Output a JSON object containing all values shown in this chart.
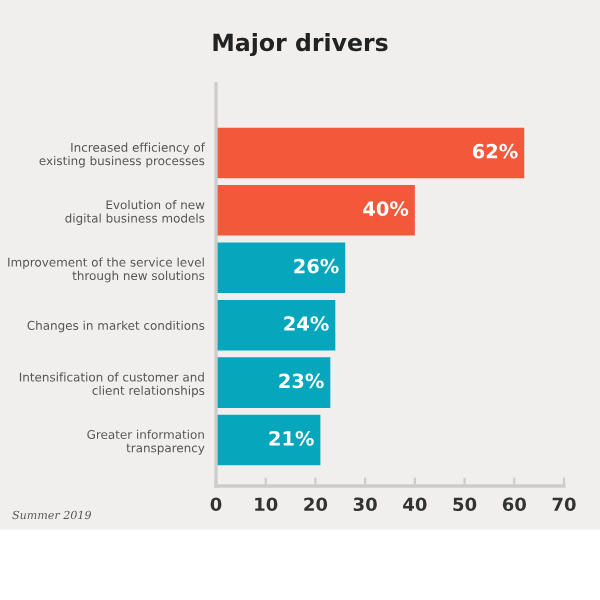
{
  "chart_data": {
    "type": "bar",
    "orientation": "horizontal",
    "title": "Major drivers",
    "categories": [
      "Increased efficiency of\nexisting business processes",
      "Evolution of new\ndigital business models",
      "Improvement of the service level\nthrough new solutions",
      "Changes in market conditions",
      "Intensification of customer and\nclient relationships",
      "Greater information\ntransparency"
    ],
    "values": [
      62,
      40,
      26,
      24,
      23,
      21
    ],
    "colors": [
      "#f4583a",
      "#f4583a",
      "#06a7bd",
      "#06a7bd",
      "#06a7bd",
      "#06a7bd"
    ],
    "value_labels": [
      "62%",
      "40%",
      "26%",
      "24%",
      "23%",
      "21%"
    ],
    "xlim": [
      0,
      70
    ],
    "xticks": [
      0,
      10,
      20,
      30,
      40,
      50,
      60,
      70
    ],
    "grid": false,
    "legend": false,
    "annotations": [
      "Summer 2019"
    ]
  }
}
